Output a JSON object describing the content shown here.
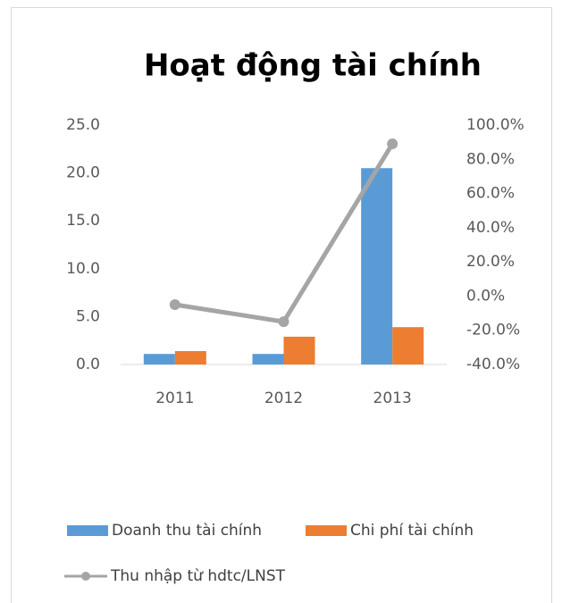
{
  "chart_data": {
    "type": "bar",
    "title": "Hoạt động tài chính",
    "categories": [
      "2011",
      "2012",
      "2013"
    ],
    "series": [
      {
        "name": "Doanh thu tài chính",
        "color": "#5b9bd5",
        "type": "bar",
        "values": [
          1.1,
          1.1,
          20.5
        ]
      },
      {
        "name": "Chi phí tài chính",
        "color": "#ed7d31",
        "type": "bar",
        "values": [
          1.4,
          2.9,
          3.9
        ]
      },
      {
        "name": "Thu nhập từ hdtc/LNST",
        "color": "#a5a5a5",
        "type": "line",
        "axis": "y2",
        "values": [
          -5,
          -15,
          89
        ]
      }
    ],
    "ylim": [
      0,
      25
    ],
    "yticks": [
      {
        "value": 0,
        "label": "0.0"
      },
      {
        "value": 5,
        "label": "5.0"
      },
      {
        "value": 10,
        "label": "10.0"
      },
      {
        "value": 15,
        "label": "15.0"
      },
      {
        "value": 20,
        "label": "20.0"
      },
      {
        "value": 25,
        "label": "25.0"
      }
    ],
    "y2lim": [
      -40,
      100
    ],
    "y2ticks": [
      {
        "value": -40,
        "label": "-40.0%"
      },
      {
        "value": -20,
        "label": "-20.0%"
      },
      {
        "value": 0,
        "label": "0.0%"
      },
      {
        "value": 20,
        "label": "20.0%"
      },
      {
        "value": 40,
        "label": "40.0%"
      },
      {
        "value": 60,
        "label": "60.0%"
      },
      {
        "value": 80,
        "label": "80.0%"
      },
      {
        "value": 100,
        "label": "100.0%"
      }
    ],
    "grid": false,
    "legend": "bottom"
  }
}
